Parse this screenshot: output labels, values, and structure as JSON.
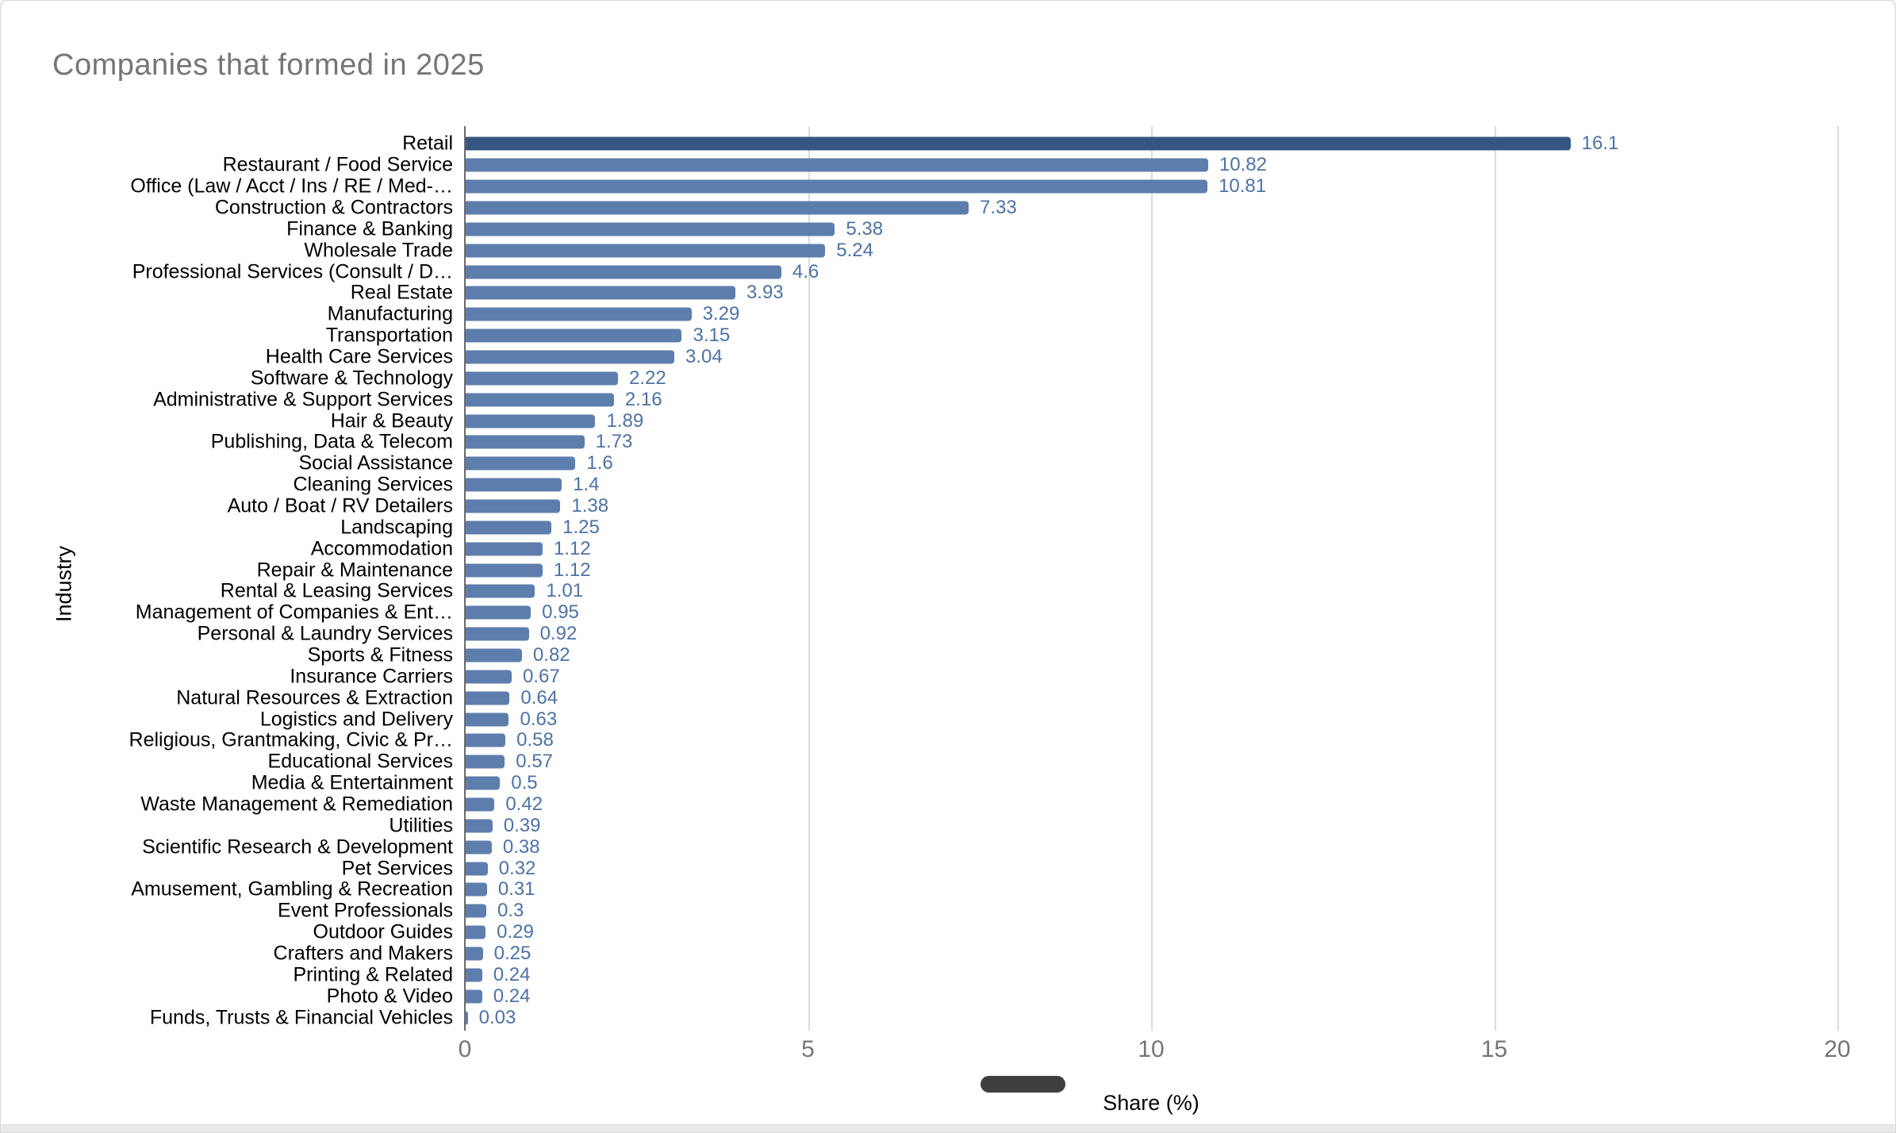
{
  "chart_data": {
    "type": "bar",
    "orientation": "horizontal",
    "title": "Companies that formed in 2025",
    "xlabel": "Share (%)",
    "ylabel": "Industry",
    "xlim": [
      0,
      20
    ],
    "xticks": [
      0,
      5,
      10,
      15,
      20
    ],
    "grid": "vertical-light-gray",
    "legend_position": "none",
    "highlight_index": 0,
    "categories": [
      "Retail",
      "Restaurant / Food Service",
      "Office (Law / Acct / Ins / RE / Med-…",
      "Construction & Contractors",
      "Finance & Banking",
      "Wholesale Trade",
      "Professional Services (Consult / D…",
      "Real Estate",
      "Manufacturing",
      "Transportation",
      "Health Care Services",
      "Software & Technology",
      "Administrative & Support Services",
      "Hair & Beauty",
      "Publishing, Data & Telecom",
      "Social Assistance",
      "Cleaning Services",
      "Auto / Boat / RV Detailers",
      "Landscaping",
      "Accommodation",
      "Repair & Maintenance",
      "Rental & Leasing Services",
      "Management of Companies & Ent…",
      "Personal & Laundry Services",
      "Sports & Fitness",
      "Insurance Carriers",
      "Natural Resources & Extraction",
      "Logistics and Delivery",
      "Religious, Grantmaking, Civic & Pr…",
      "Educational Services",
      "Media & Entertainment",
      "Waste Management & Remediation",
      "Utilities",
      "Scientific Research & Development",
      "Pet Services",
      "Amusement, Gambling & Recreation",
      "Event Professionals",
      "Outdoor Guides",
      "Crafters and Makers",
      "Printing & Related",
      "Photo & Video",
      "Funds, Trusts & Financial Vehicles"
    ],
    "values": [
      16.1,
      10.82,
      10.81,
      7.33,
      5.38,
      5.24,
      4.6,
      3.93,
      3.29,
      3.15,
      3.04,
      2.22,
      2.16,
      1.89,
      1.73,
      1.6,
      1.4,
      1.38,
      1.25,
      1.12,
      1.12,
      1.01,
      0.95,
      0.92,
      0.82,
      0.67,
      0.64,
      0.63,
      0.58,
      0.57,
      0.5,
      0.42,
      0.39,
      0.38,
      0.32,
      0.31,
      0.3,
      0.29,
      0.25,
      0.24,
      0.24,
      0.03
    ],
    "value_labels": [
      "16.1",
      "10.82",
      "10.81",
      "7.33",
      "5.38",
      "5.24",
      "4.6",
      "3.93",
      "3.29",
      "3.15",
      "3.04",
      "2.22",
      "2.16",
      "1.89",
      "1.73",
      "1.6",
      "1.4",
      "1.38",
      "1.25",
      "1.12",
      "1.12",
      "1.01",
      "0.95",
      "0.92",
      "0.82",
      "0.67",
      "0.64",
      "0.63",
      "0.58",
      "0.57",
      "0.5",
      "0.42",
      "0.39",
      "0.38",
      "0.32",
      "0.31",
      "0.3",
      "0.29",
      "0.25",
      "0.24",
      "0.24",
      "0.03"
    ],
    "colors": {
      "bar": "#5d7ead",
      "bar_highlight": "#35577f",
      "value_label": "#4d72a3",
      "title": "#757575",
      "tick_label": "#757575",
      "gridline": "#dcdcdc",
      "axis_line": "#6b6b6b",
      "slider_pill": "#3f3f3f"
    }
  }
}
